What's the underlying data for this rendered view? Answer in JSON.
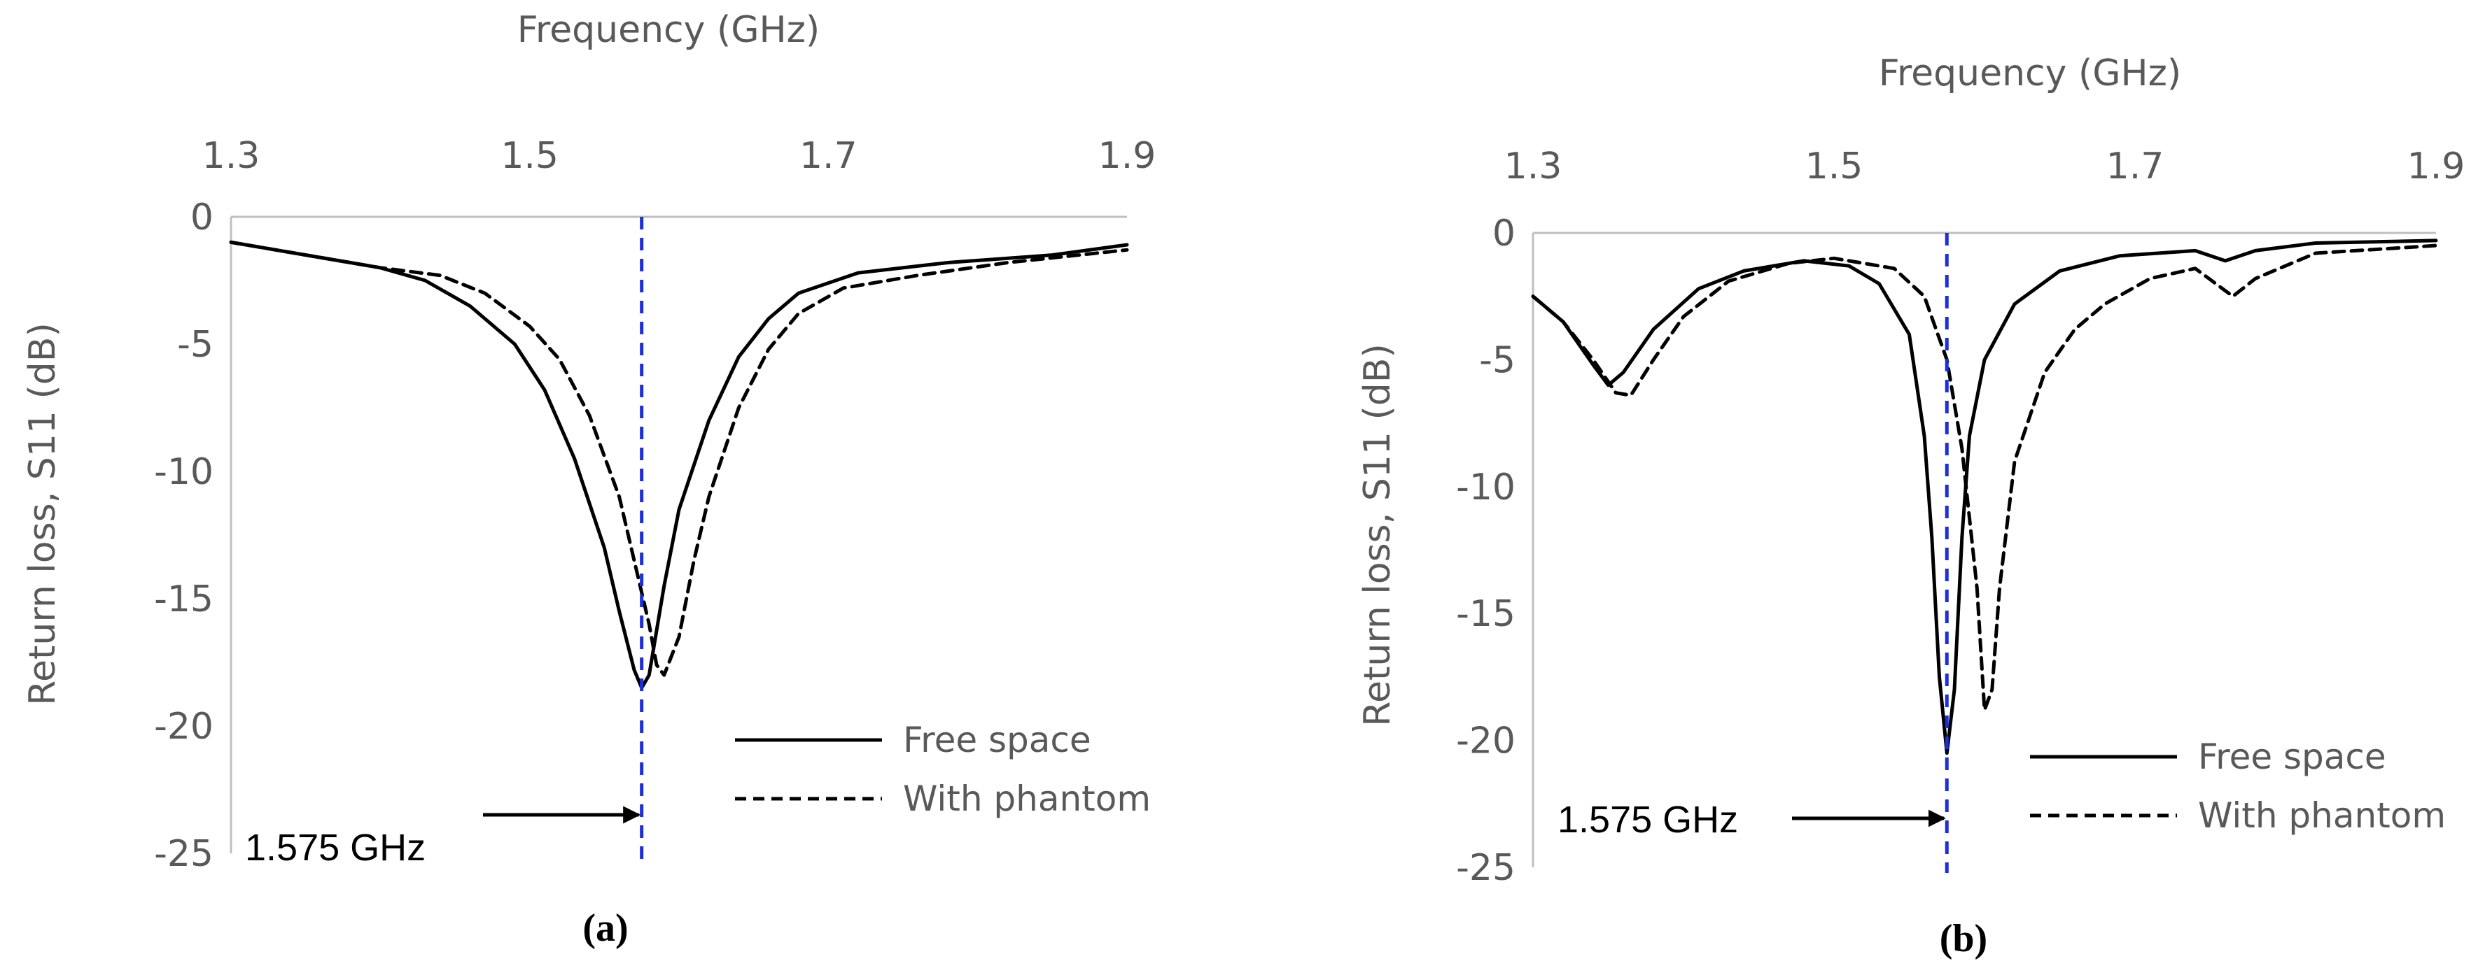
{
  "chart_data": [
    {
      "type": "line",
      "panel_label": "(a)",
      "xlabel": "Frequency (GHz)",
      "ylabel": "Return loss, S11 (dB)",
      "xlim": [
        1.3,
        1.9
      ],
      "ylim": [
        -25,
        0
      ],
      "x_ticks": [
        "1.3",
        "1.5",
        "1.7",
        "1.9"
      ],
      "y_ticks": [
        "0",
        "-5",
        "-10",
        "-15",
        "-20",
        "-25"
      ],
      "x_axis_position": "top",
      "grid": false,
      "legend_position": "bottom-right",
      "marker_frequency": 1.575,
      "annotation": "1.575 GHz",
      "series": [
        {
          "name": "Free space",
          "style": "solid",
          "points": [
            [
              1.3,
              -1.0
            ],
            [
              1.35,
              -1.5
            ],
            [
              1.4,
              -2.0
            ],
            [
              1.43,
              -2.5
            ],
            [
              1.46,
              -3.5
            ],
            [
              1.49,
              -5.0
            ],
            [
              1.51,
              -6.8
            ],
            [
              1.53,
              -9.5
            ],
            [
              1.55,
              -13.0
            ],
            [
              1.56,
              -15.5
            ],
            [
              1.57,
              -17.8
            ],
            [
              1.575,
              -18.5
            ],
            [
              1.58,
              -18.0
            ],
            [
              1.59,
              -14.5
            ],
            [
              1.6,
              -11.5
            ],
            [
              1.62,
              -8.0
            ],
            [
              1.64,
              -5.5
            ],
            [
              1.66,
              -4.0
            ],
            [
              1.68,
              -3.0
            ],
            [
              1.72,
              -2.2
            ],
            [
              1.78,
              -1.8
            ],
            [
              1.85,
              -1.5
            ],
            [
              1.9,
              -1.1
            ]
          ]
        },
        {
          "name": "With phantom",
          "style": "dashed",
          "points": [
            [
              1.3,
              -1.0
            ],
            [
              1.35,
              -1.5
            ],
            [
              1.4,
              -2.0
            ],
            [
              1.44,
              -2.3
            ],
            [
              1.47,
              -3.0
            ],
            [
              1.5,
              -4.3
            ],
            [
              1.52,
              -5.6
            ],
            [
              1.54,
              -7.8
            ],
            [
              1.56,
              -11.0
            ],
            [
              1.57,
              -13.5
            ],
            [
              1.58,
              -16.0
            ],
            [
              1.585,
              -17.6
            ],
            [
              1.59,
              -18.0
            ],
            [
              1.6,
              -16.5
            ],
            [
              1.61,
              -13.5
            ],
            [
              1.62,
              -11.0
            ],
            [
              1.64,
              -7.5
            ],
            [
              1.66,
              -5.2
            ],
            [
              1.68,
              -3.8
            ],
            [
              1.71,
              -2.8
            ],
            [
              1.76,
              -2.3
            ],
            [
              1.82,
              -1.8
            ],
            [
              1.9,
              -1.3
            ]
          ]
        }
      ]
    },
    {
      "type": "line",
      "panel_label": "(b)",
      "xlabel": "Frequency (GHz)",
      "ylabel": "Return loss, S11 (dB)",
      "xlim": [
        1.3,
        1.9
      ],
      "ylim": [
        -25,
        0
      ],
      "x_ticks": [
        "1.3",
        "1.5",
        "1.7",
        "1.9"
      ],
      "y_ticks": [
        "0",
        "-5",
        "-10",
        "-15",
        "-20",
        "-25"
      ],
      "x_axis_position": "top",
      "grid": false,
      "legend_position": "bottom-right",
      "marker_frequency": 1.575,
      "annotation": "1.575 GHz",
      "series": [
        {
          "name": "Free space",
          "style": "solid",
          "points": [
            [
              1.3,
              -2.5
            ],
            [
              1.32,
              -3.5
            ],
            [
              1.34,
              -5.2
            ],
            [
              1.35,
              -6.0
            ],
            [
              1.36,
              -5.5
            ],
            [
              1.38,
              -3.8
            ],
            [
              1.41,
              -2.2
            ],
            [
              1.44,
              -1.5
            ],
            [
              1.48,
              -1.1
            ],
            [
              1.51,
              -1.3
            ],
            [
              1.53,
              -2.0
            ],
            [
              1.55,
              -4.0
            ],
            [
              1.56,
              -8.0
            ],
            [
              1.565,
              -12.0
            ],
            [
              1.57,
              -17.5
            ],
            [
              1.575,
              -20.5
            ],
            [
              1.58,
              -18.0
            ],
            [
              1.585,
              -12.0
            ],
            [
              1.59,
              -8.0
            ],
            [
              1.6,
              -5.0
            ],
            [
              1.62,
              -2.8
            ],
            [
              1.65,
              -1.5
            ],
            [
              1.69,
              -0.9
            ],
            [
              1.74,
              -0.7
            ],
            [
              1.76,
              -1.1
            ],
            [
              1.78,
              -0.7
            ],
            [
              1.82,
              -0.4
            ],
            [
              1.9,
              -0.3
            ]
          ]
        },
        {
          "name": "With phantom",
          "style": "dashed",
          "points": [
            [
              1.3,
              -2.5
            ],
            [
              1.32,
              -3.5
            ],
            [
              1.34,
              -5.0
            ],
            [
              1.355,
              -6.3
            ],
            [
              1.365,
              -6.4
            ],
            [
              1.38,
              -5.0
            ],
            [
              1.4,
              -3.3
            ],
            [
              1.43,
              -1.9
            ],
            [
              1.47,
              -1.2
            ],
            [
              1.5,
              -1.0
            ],
            [
              1.54,
              -1.4
            ],
            [
              1.56,
              -2.5
            ],
            [
              1.575,
              -5.0
            ],
            [
              1.585,
              -8.5
            ],
            [
              1.595,
              -14.0
            ],
            [
              1.6,
              -18.8
            ],
            [
              1.605,
              -18.0
            ],
            [
              1.61,
              -14.0
            ],
            [
              1.62,
              -9.0
            ],
            [
              1.64,
              -5.5
            ],
            [
              1.66,
              -3.8
            ],
            [
              1.68,
              -2.8
            ],
            [
              1.71,
              -1.8
            ],
            [
              1.74,
              -1.4
            ],
            [
              1.765,
              -2.5
            ],
            [
              1.78,
              -1.8
            ],
            [
              1.82,
              -0.8
            ],
            [
              1.9,
              -0.5
            ]
          ]
        }
      ]
    }
  ]
}
